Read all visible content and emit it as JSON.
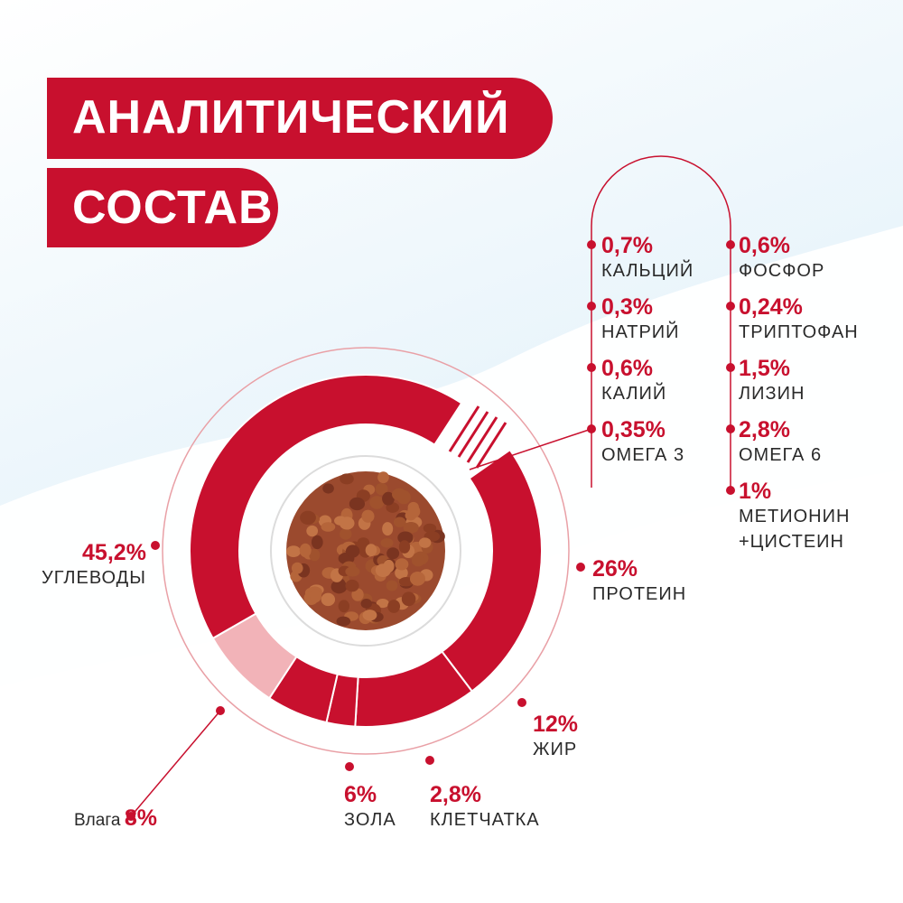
{
  "title": {
    "line1": "АНАЛИТИЧЕСКИЙ",
    "line2": "СОСТАВ"
  },
  "chart_data": {
    "type": "pie",
    "title": "АНАЛИТИЧЕСКИЙ СОСТАВ",
    "slices": [
      {
        "label": "ПРОТЕИН",
        "value": 26,
        "display": "26%",
        "color": "#c8102e"
      },
      {
        "label": "ЖИР",
        "value": 12,
        "display": "12%",
        "color": "#c8102e"
      },
      {
        "label": "КЛЕТЧАТКА",
        "value": 2.8,
        "display": "2,8%",
        "color": "#c8102e"
      },
      {
        "label": "ЗОЛА",
        "value": 6,
        "display": "6%",
        "color": "#c8102e"
      },
      {
        "label": "Влага",
        "value": 8,
        "display": "8%",
        "color": "#f2b3b8"
      },
      {
        "label": "УГЛЕВОДЫ",
        "value": 45.2,
        "display": "45,2%",
        "color": "#c8102e"
      }
    ],
    "minerals": [
      {
        "value": "0,7%",
        "name": "КАЛЬЦИЙ"
      },
      {
        "value": "0,3%",
        "name": "НАТРИЙ"
      },
      {
        "value": "0,6%",
        "name": "КАЛИЙ"
      },
      {
        "value": "0,35%",
        "name": "ОМЕГА 3"
      }
    ],
    "amino": [
      {
        "value": "0,6%",
        "name": "ФОСФОР"
      },
      {
        "value": "0,24%",
        "name": "ТРИПТОФАН"
      },
      {
        "value": "1,5%",
        "name": "ЛИЗИН"
      },
      {
        "value": "2,8%",
        "name": "ОМЕГА 6"
      },
      {
        "value": "1%",
        "name": "МЕТИОНИН",
        "name2": "+ЦИСТЕИН"
      }
    ]
  },
  "colors": {
    "accent": "#c8102e",
    "light_accent": "#f2b3b8",
    "sky": "#c9e6f3"
  }
}
